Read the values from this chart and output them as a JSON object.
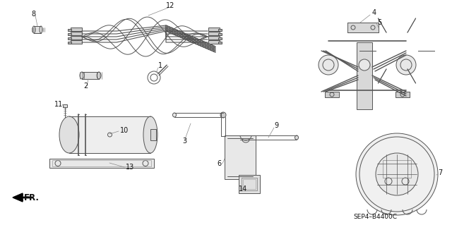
{
  "background_color": "#ffffff",
  "diagram_code": "SEP4–B4400C",
  "line_color": "#555555",
  "text_color": "#111111",
  "label_fontsize": 7.0,
  "fig_width": 6.4,
  "fig_height": 3.19,
  "dpi": 100
}
